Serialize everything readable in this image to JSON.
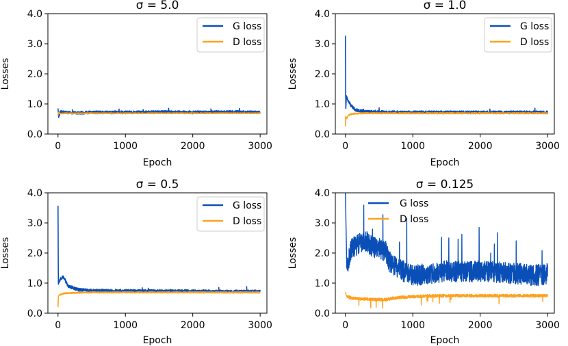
{
  "colors": {
    "g_loss": "#0a4fb8",
    "d_loss": "#ffa01e",
    "d_loss_dark": "#ff8c14"
  },
  "chart_data": [
    {
      "type": "line",
      "title": "σ = 5.0",
      "xlabel": "Epoch",
      "ylabel": "Losses",
      "xlim": [
        -150,
        3100
      ],
      "ylim": [
        0.0,
        4.0
      ],
      "xticks": [
        0,
        1000,
        2000,
        3000
      ],
      "yticks": [
        0.0,
        1.0,
        2.0,
        3.0,
        4.0
      ],
      "ytick_labels": [
        "0.0",
        "1.0",
        "2.0",
        "3.0",
        "4.0"
      ],
      "legend_position": "upper-right",
      "series": [
        {
          "name": "G loss",
          "x": [
            0,
            10,
            30,
            100,
            300,
            500,
            1000,
            1500,
            2000,
            2500,
            3000
          ],
          "values": [
            0.85,
            0.55,
            0.74,
            0.72,
            0.7,
            0.72,
            0.72,
            0.73,
            0.72,
            0.73,
            0.72
          ]
        },
        {
          "name": "D loss",
          "x": [
            0,
            10,
            30,
            100,
            300,
            500,
            1000,
            1500,
            2000,
            2500,
            3000
          ],
          "values": [
            0.62,
            0.72,
            0.68,
            0.69,
            0.69,
            0.69,
            0.69,
            0.69,
            0.69,
            0.69,
            0.69
          ]
        }
      ]
    },
    {
      "type": "line",
      "title": "σ = 1.0",
      "xlabel": "Epoch",
      "ylabel": "Losses",
      "xlim": [
        -150,
        3100
      ],
      "ylim": [
        0.0,
        4.0
      ],
      "xticks": [
        0,
        1000,
        2000,
        3000
      ],
      "yticks": [
        0.0,
        1.0,
        2.0,
        3.0,
        4.0
      ],
      "ytick_labels": [
        "0.0",
        "1.0",
        "2.0",
        "3.0",
        "4.0"
      ],
      "legend_position": "upper-right",
      "series": [
        {
          "name": "G loss",
          "x": [
            0,
            5,
            15,
            40,
            80,
            150,
            300,
            500,
            1000,
            1500,
            2000,
            2500,
            3000
          ],
          "values": [
            3.27,
            0.8,
            1.28,
            1.1,
            0.95,
            0.8,
            0.74,
            0.73,
            0.72,
            0.72,
            0.72,
            0.72,
            0.72
          ]
        },
        {
          "name": "D loss",
          "x": [
            0,
            5,
            15,
            40,
            80,
            150,
            300,
            500,
            1000,
            1500,
            2000,
            2500,
            3000
          ],
          "values": [
            0.25,
            0.6,
            0.5,
            0.62,
            0.66,
            0.68,
            0.69,
            0.69,
            0.69,
            0.69,
            0.69,
            0.69,
            0.69
          ]
        }
      ]
    },
    {
      "type": "line",
      "title": "σ = 0.5",
      "xlabel": "Epoch",
      "ylabel": "Losses",
      "xlim": [
        -150,
        3100
      ],
      "ylim": [
        0.0,
        4.0
      ],
      "xticks": [
        0,
        1000,
        2000,
        3000
      ],
      "yticks": [
        0.0,
        1.0,
        2.0,
        3.0,
        4.0
      ],
      "ytick_labels": [
        "0.0",
        "1.0",
        "2.0",
        "3.0",
        "4.0"
      ],
      "legend_position": "upper-right",
      "series": [
        {
          "name": "G loss",
          "x": [
            0,
            5,
            15,
            40,
            80,
            150,
            300,
            500,
            1000,
            1500,
            2000,
            2500,
            3000
          ],
          "values": [
            3.57,
            0.95,
            1.05,
            1.15,
            1.2,
            0.9,
            0.78,
            0.75,
            0.74,
            0.73,
            0.73,
            0.72,
            0.72
          ]
        },
        {
          "name": "D loss",
          "x": [
            0,
            5,
            15,
            40,
            80,
            150,
            300,
            500,
            1000,
            1500,
            2000,
            2500,
            3000
          ],
          "values": [
            0.2,
            0.55,
            0.6,
            0.62,
            0.65,
            0.67,
            0.68,
            0.69,
            0.69,
            0.69,
            0.69,
            0.69,
            0.69
          ]
        }
      ]
    },
    {
      "type": "line",
      "title": "σ = 0.125",
      "xlabel": "Epoch",
      "ylabel": "Losses",
      "xlim": [
        -150,
        3100
      ],
      "ylim": [
        0.0,
        4.0
      ],
      "xticks": [
        0,
        1000,
        2000,
        3000
      ],
      "yticks": [
        0.0,
        1.0,
        2.0,
        3.0,
        4.0
      ],
      "ytick_labels": [
        "0.0",
        "1.0",
        "2.0",
        "3.0",
        "4.0"
      ],
      "legend_position": "upper-left",
      "series": [
        {
          "name": "G loss",
          "x": [
            0,
            20,
            100,
            200,
            300,
            400,
            500,
            600,
            650,
            700,
            800,
            1000,
            1200,
            1500,
            1800,
            2000,
            2300,
            2600,
            2800,
            3000
          ],
          "values": [
            4.0,
            1.5,
            2.1,
            2.2,
            2.3,
            2.1,
            2.05,
            1.95,
            1.6,
            1.5,
            1.35,
            1.15,
            1.2,
            1.3,
            1.25,
            1.3,
            1.25,
            1.2,
            1.15,
            1.2
          ]
        },
        {
          "name": "D loss",
          "x": [
            0,
            20,
            100,
            200,
            300,
            400,
            500,
            600,
            650,
            700,
            800,
            1000,
            1200,
            1500,
            1800,
            2000,
            2300,
            2600,
            2800,
            3000
          ],
          "values": [
            0.7,
            0.55,
            0.5,
            0.48,
            0.47,
            0.46,
            0.45,
            0.45,
            0.47,
            0.5,
            0.52,
            0.55,
            0.57,
            0.58,
            0.58,
            0.58,
            0.58,
            0.58,
            0.58,
            0.58
          ]
        }
      ]
    }
  ]
}
